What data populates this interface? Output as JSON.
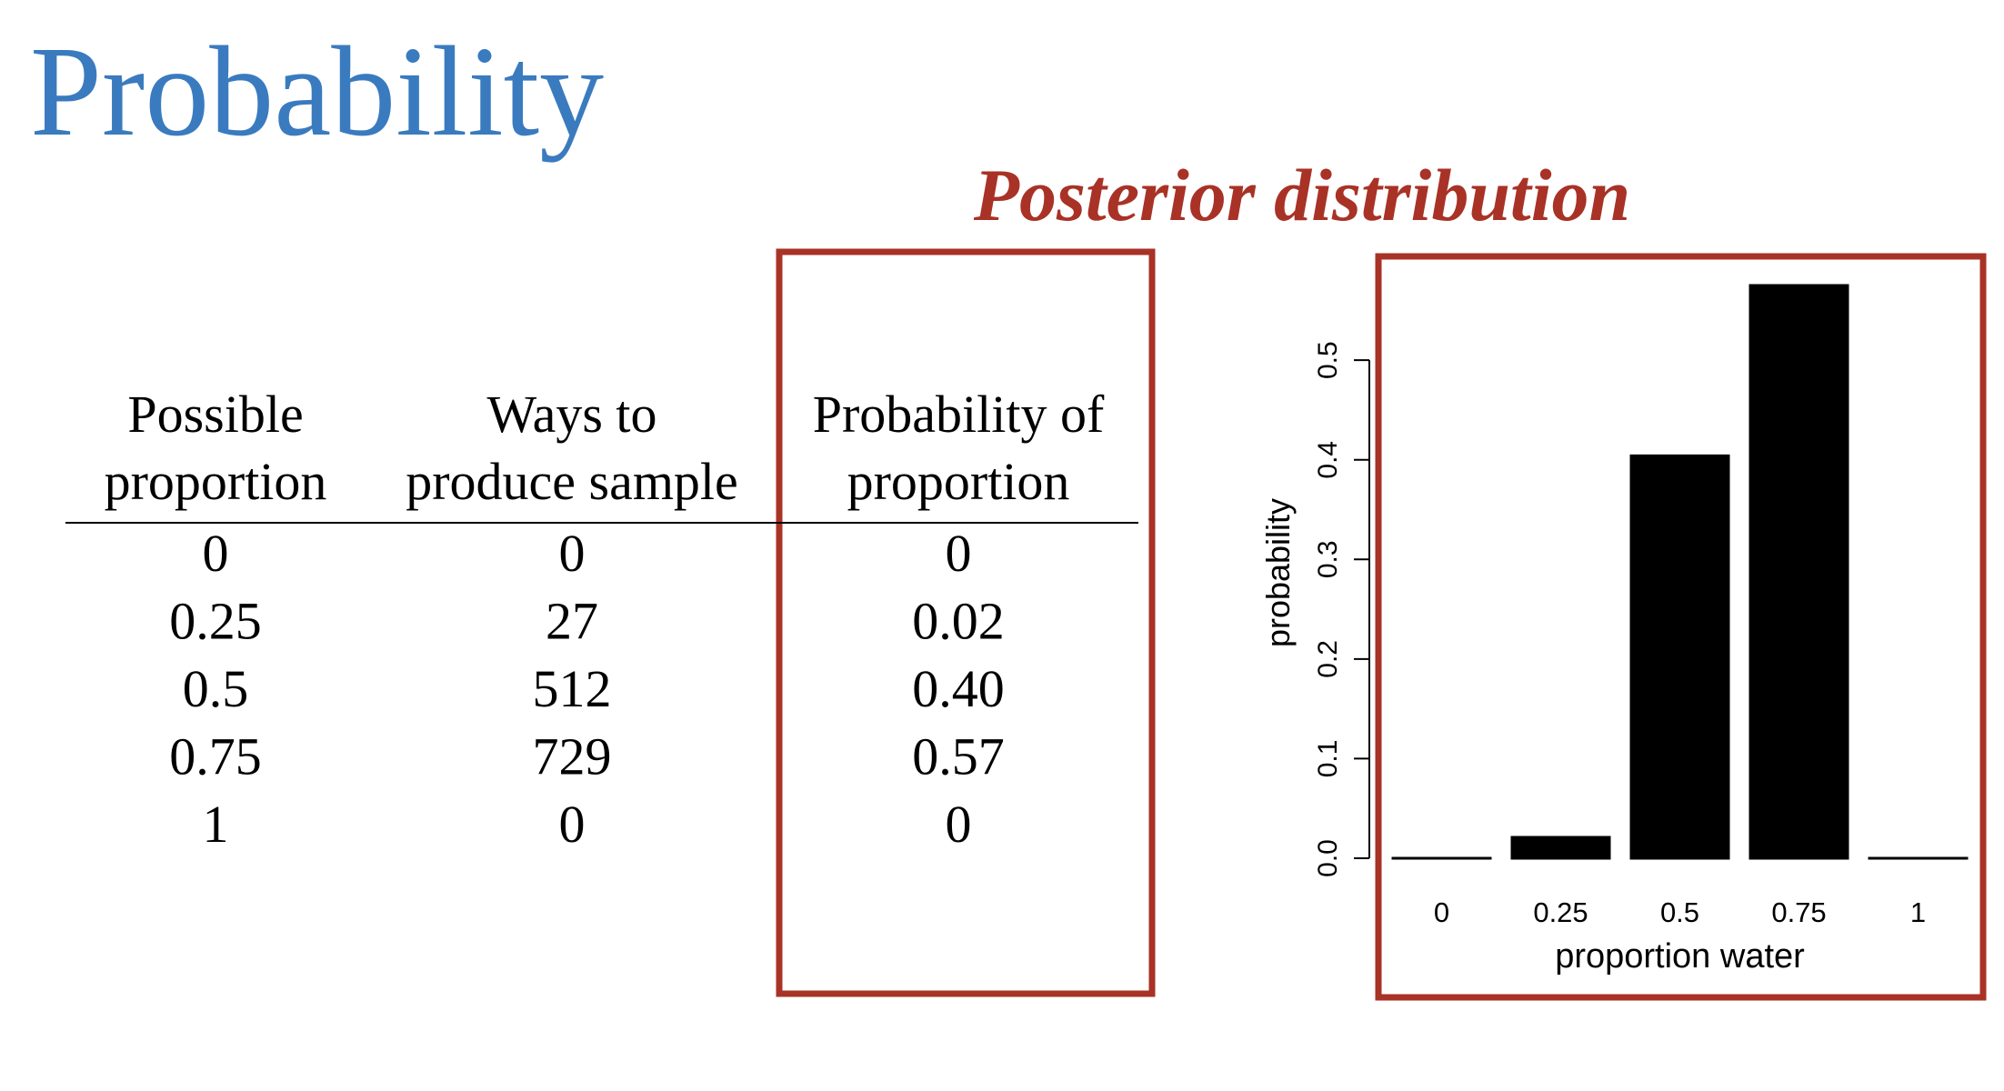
{
  "header": {
    "title": "Probability",
    "subtitle": "Posterior distribution"
  },
  "table": {
    "headers": [
      [
        "Possible",
        "proportion"
      ],
      [
        "Ways to",
        "produce sample"
      ],
      [
        "Probability of",
        "proportion"
      ]
    ],
    "rows": [
      [
        "0",
        "0",
        "0"
      ],
      [
        "0.25",
        "27",
        "0.02"
      ],
      [
        "0.5",
        "512",
        "0.40"
      ],
      [
        "0.75",
        "729",
        "0.57"
      ],
      [
        "1",
        "0",
        "0"
      ]
    ]
  },
  "chart_data": {
    "type": "bar",
    "x_label": "proportion water",
    "y_label": "probability",
    "categories": [
      "0",
      "0.25",
      "0.5",
      "0.75",
      "1"
    ],
    "values": [
      0,
      0.021,
      0.404,
      0.575,
      0
    ],
    "color": "#000000",
    "ylim": [
      0,
      0.575
    ],
    "yticks": [
      {
        "value": 0,
        "label": "0.0"
      },
      0.1,
      0.2,
      0.3,
      0.4,
      0.5
    ]
  }
}
